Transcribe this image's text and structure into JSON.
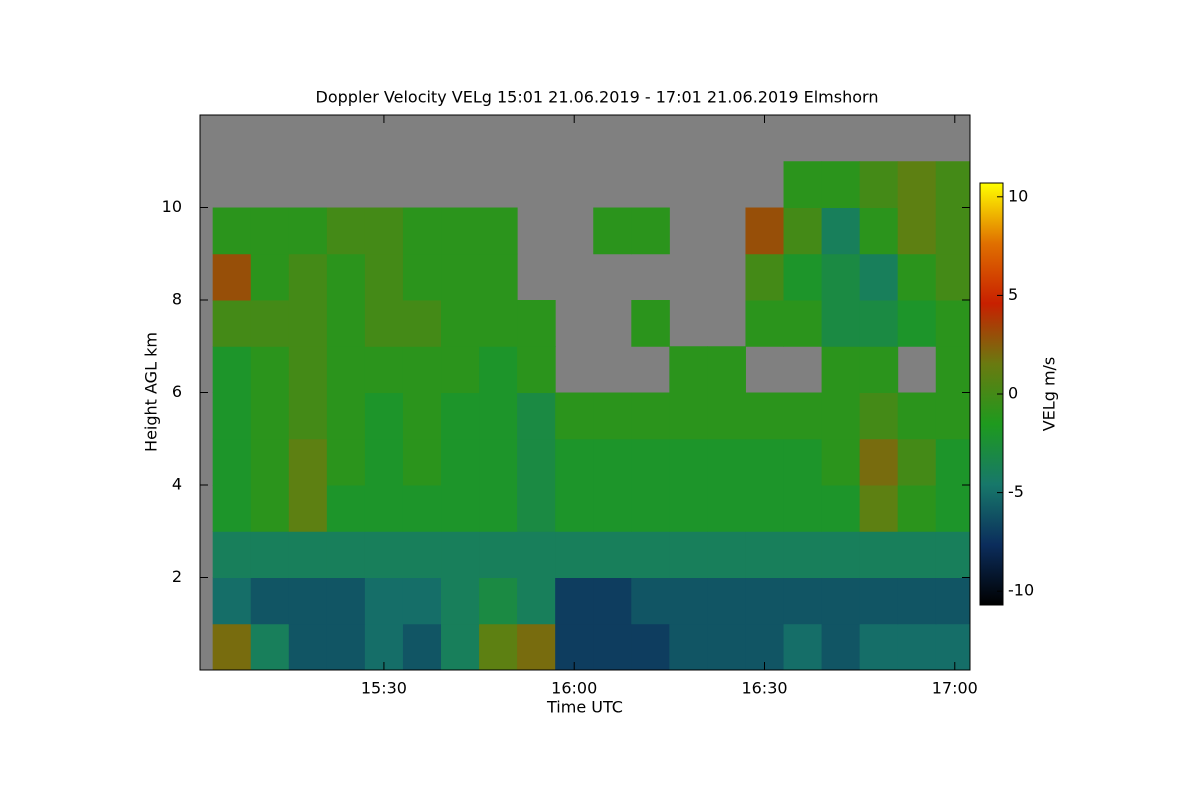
{
  "chart_data": {
    "type": "heatmap",
    "title": "Doppler Velocity VELg   15:01 21.06.2019 - 17:01 21.06.2019 Elmshorn",
    "x_label": "Time UTC",
    "y_label": "Height AGL km",
    "colorbar_label": "VELg m/s",
    "xlim": [
      15.0167,
      17.04
    ],
    "xticks": [
      {
        "value": 15.5,
        "label": "15:30"
      },
      {
        "value": 16,
        "label": "16:00"
      },
      {
        "value": 16.5,
        "label": "16:30"
      },
      {
        "value": 17,
        "label": "17:00"
      }
    ],
    "ylim": [
      0,
      12
    ],
    "yticks": [
      2,
      4,
      6,
      8,
      10
    ],
    "zlim": [
      -10.7,
      10.7
    ],
    "zticks": [
      -10,
      -5,
      0,
      5,
      10
    ],
    "colorscale": [
      "#000000",
      "#0b2d5c",
      "#17786a",
      "#1e9a1e",
      "#6a7a10",
      "#c82000",
      "#e07000",
      "#ffff00"
    ],
    "null_color": "#808080",
    "x": [
      15.1,
      15.2,
      15.3,
      15.4,
      15.5,
      15.6,
      15.7,
      15.8,
      15.9,
      16.0,
      16.1,
      16.2,
      16.3,
      16.4,
      16.5,
      16.6,
      16.7,
      16.8,
      16.9,
      17.0
    ],
    "y": [
      0.5,
      1.5,
      2.5,
      3.5,
      4.5,
      5.5,
      6.5,
      7.5,
      8.5,
      9.5,
      10.5,
      11.5
    ],
    "z": [
      [
        2,
        -4,
        -6,
        -6,
        -5,
        -6,
        -4,
        1,
        2,
        -7,
        -7,
        -7,
        -6,
        -6,
        -6,
        -5,
        -6,
        -5,
        -5,
        -5
      ],
      [
        -5,
        -6,
        -6,
        -6,
        -5,
        -5,
        -4,
        -3,
        -4,
        -7,
        -7,
        -6,
        -6,
        -6,
        -6,
        -6,
        -6,
        -6,
        -6,
        -6
      ],
      [
        -4,
        -4,
        -4,
        -4,
        -4,
        -4,
        -4,
        -4,
        -4,
        -4,
        -4,
        -4,
        -4,
        -4,
        -4,
        -4,
        -4,
        -4,
        -4,
        -4
      ],
      [
        -2,
        -1,
        1,
        -2,
        -2,
        -2,
        -2,
        -2,
        -3,
        -2,
        -2,
        -2,
        -2,
        -2,
        -2,
        -2,
        -2,
        1,
        -1,
        -2
      ],
      [
        -2,
        -1,
        1,
        -1,
        -2,
        -1,
        -2,
        -2,
        -3,
        -2,
        -2,
        -2,
        -2,
        -2,
        -2,
        -2,
        -1,
        2,
        0,
        -2
      ],
      [
        -2,
        -1,
        0,
        -1,
        -2,
        -1,
        -2,
        -2,
        -3,
        -1,
        -1,
        -1,
        -1,
        -1,
        -1,
        -1,
        -1,
        0,
        -1,
        -1
      ],
      [
        -2,
        -1,
        0,
        -1,
        -1,
        -1,
        -1,
        -2,
        -1,
        null,
        null,
        null,
        -1,
        -1,
        null,
        null,
        -1,
        -1,
        null,
        -1
      ],
      [
        0,
        0,
        0,
        -1,
        0,
        0,
        -1,
        -1,
        -1,
        null,
        null,
        -1,
        null,
        null,
        -1,
        -1,
        -3,
        -3,
        -2,
        -1
      ],
      [
        3,
        -1,
        0,
        -1,
        0,
        -1,
        -1,
        -1,
        null,
        null,
        null,
        null,
        null,
        null,
        0,
        -2,
        -3,
        -4,
        -1,
        0
      ],
      [
        -1,
        -1,
        -1,
        0,
        0,
        -1,
        -1,
        -1,
        null,
        null,
        -1,
        -1,
        null,
        null,
        3,
        0,
        -4,
        -1,
        1,
        0
      ],
      [
        null,
        null,
        null,
        null,
        null,
        null,
        null,
        null,
        null,
        null,
        null,
        null,
        null,
        null,
        null,
        -1,
        -1,
        0,
        1,
        0
      ],
      [
        null,
        null,
        null,
        null,
        null,
        null,
        null,
        null,
        null,
        null,
        null,
        null,
        null,
        null,
        null,
        null,
        null,
        null,
        null,
        null
      ]
    ]
  }
}
